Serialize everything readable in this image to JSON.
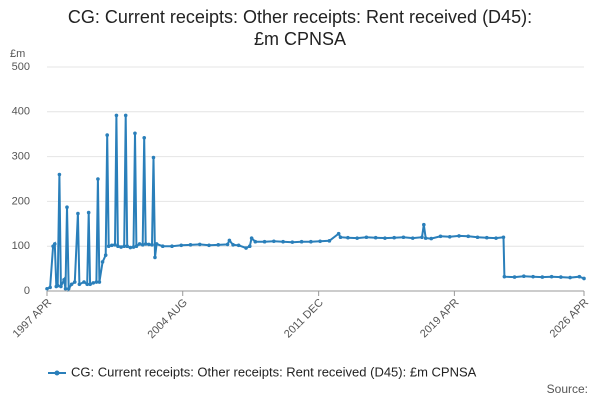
{
  "chart_data": {
    "type": "line",
    "title": "CG: Current receipts: Other receipts: Rent received (D45): £m CPNSA",
    "y_label": "£m",
    "source_label": "Source:",
    "x": [
      1997.25,
      1997.42,
      1997.58,
      1997.67,
      1997.75,
      1997.83,
      1997.92,
      1998.0,
      1998.17,
      1998.25,
      1998.33,
      1998.42,
      1998.58,
      1998.75,
      1998.92,
      1999.0,
      1999.25,
      1999.42,
      1999.5,
      1999.58,
      1999.75,
      1999.92,
      2000.0,
      2000.08,
      2000.25,
      2000.42,
      2000.5,
      2000.58,
      2000.75,
      2000.92,
      2001.0,
      2001.08,
      2001.25,
      2001.42,
      2001.5,
      2001.58,
      2001.75,
      2001.92,
      2002.0,
      2002.08,
      2002.25,
      2002.42,
      2002.5,
      2002.58,
      2002.75,
      2002.92,
      2003.0,
      2003.08,
      2003.17,
      2003.5,
      2004.0,
      2004.5,
      2005.0,
      2005.5,
      2006.0,
      2006.5,
      2007.0,
      2007.1,
      2007.3,
      2007.6,
      2008.0,
      2008.2,
      2008.3,
      2008.5,
      2009.0,
      2009.5,
      2010.0,
      2010.5,
      2011.0,
      2011.5,
      2012.0,
      2012.5,
      2013.0,
      2013.1,
      2013.5,
      2014.0,
      2014.5,
      2015.0,
      2015.5,
      2016.0,
      2016.5,
      2017.0,
      2017.5,
      2017.6,
      2017.7,
      2018.0,
      2018.5,
      2019.0,
      2019.5,
      2020.0,
      2020.5,
      2021.0,
      2021.5,
      2021.9,
      2021.95,
      2022.5,
      2023.0,
      2023.5,
      2024.0,
      2024.5,
      2025.0,
      2025.5,
      2026.0,
      2026.25
    ],
    "series": [
      {
        "name": "CG: Current receipts: Other receipts: Rent received (D45): £m CPNSA",
        "color": "#2a7fba",
        "values": [
          5,
          8,
          100,
          105,
          10,
          12,
          260,
          10,
          25,
          5,
          187,
          5,
          15,
          20,
          173,
          15,
          20,
          15,
          175,
          15,
          18,
          20,
          250,
          20,
          65,
          80,
          348,
          100,
          102,
          103,
          392,
          100,
          98,
          100,
          392,
          100,
          97,
          98,
          352,
          100,
          105,
          103,
          342,
          105,
          104,
          103,
          298,
          75,
          105,
          100,
          100,
          102,
          103,
          104,
          102,
          103,
          104,
          113,
          103,
          102,
          96,
          100,
          118,
          110,
          110,
          111,
          110,
          109,
          110,
          110,
          111,
          112,
          128,
          120,
          119,
          118,
          120,
          119,
          118,
          119,
          120,
          118,
          120,
          148,
          118,
          117,
          122,
          121,
          123,
          122,
          120,
          119,
          118,
          120,
          32,
          31,
          33,
          32,
          31,
          32,
          31,
          30,
          32,
          28
        ]
      }
    ],
    "xlim": [
      1997.25,
      2026.25
    ],
    "xticks": [
      {
        "value": 1997.25,
        "label": "1997 APR"
      },
      {
        "value": 2004.58,
        "label": "2004 AUG"
      },
      {
        "value": 2011.92,
        "label": "2011 DEC"
      },
      {
        "value": 2019.25,
        "label": "2019 APR"
      },
      {
        "value": 2026.25,
        "label": "2026 APR"
      }
    ],
    "ylim": [
      0,
      500
    ],
    "yticks": [
      0,
      100,
      200,
      300,
      400,
      500
    ],
    "grid": true
  }
}
